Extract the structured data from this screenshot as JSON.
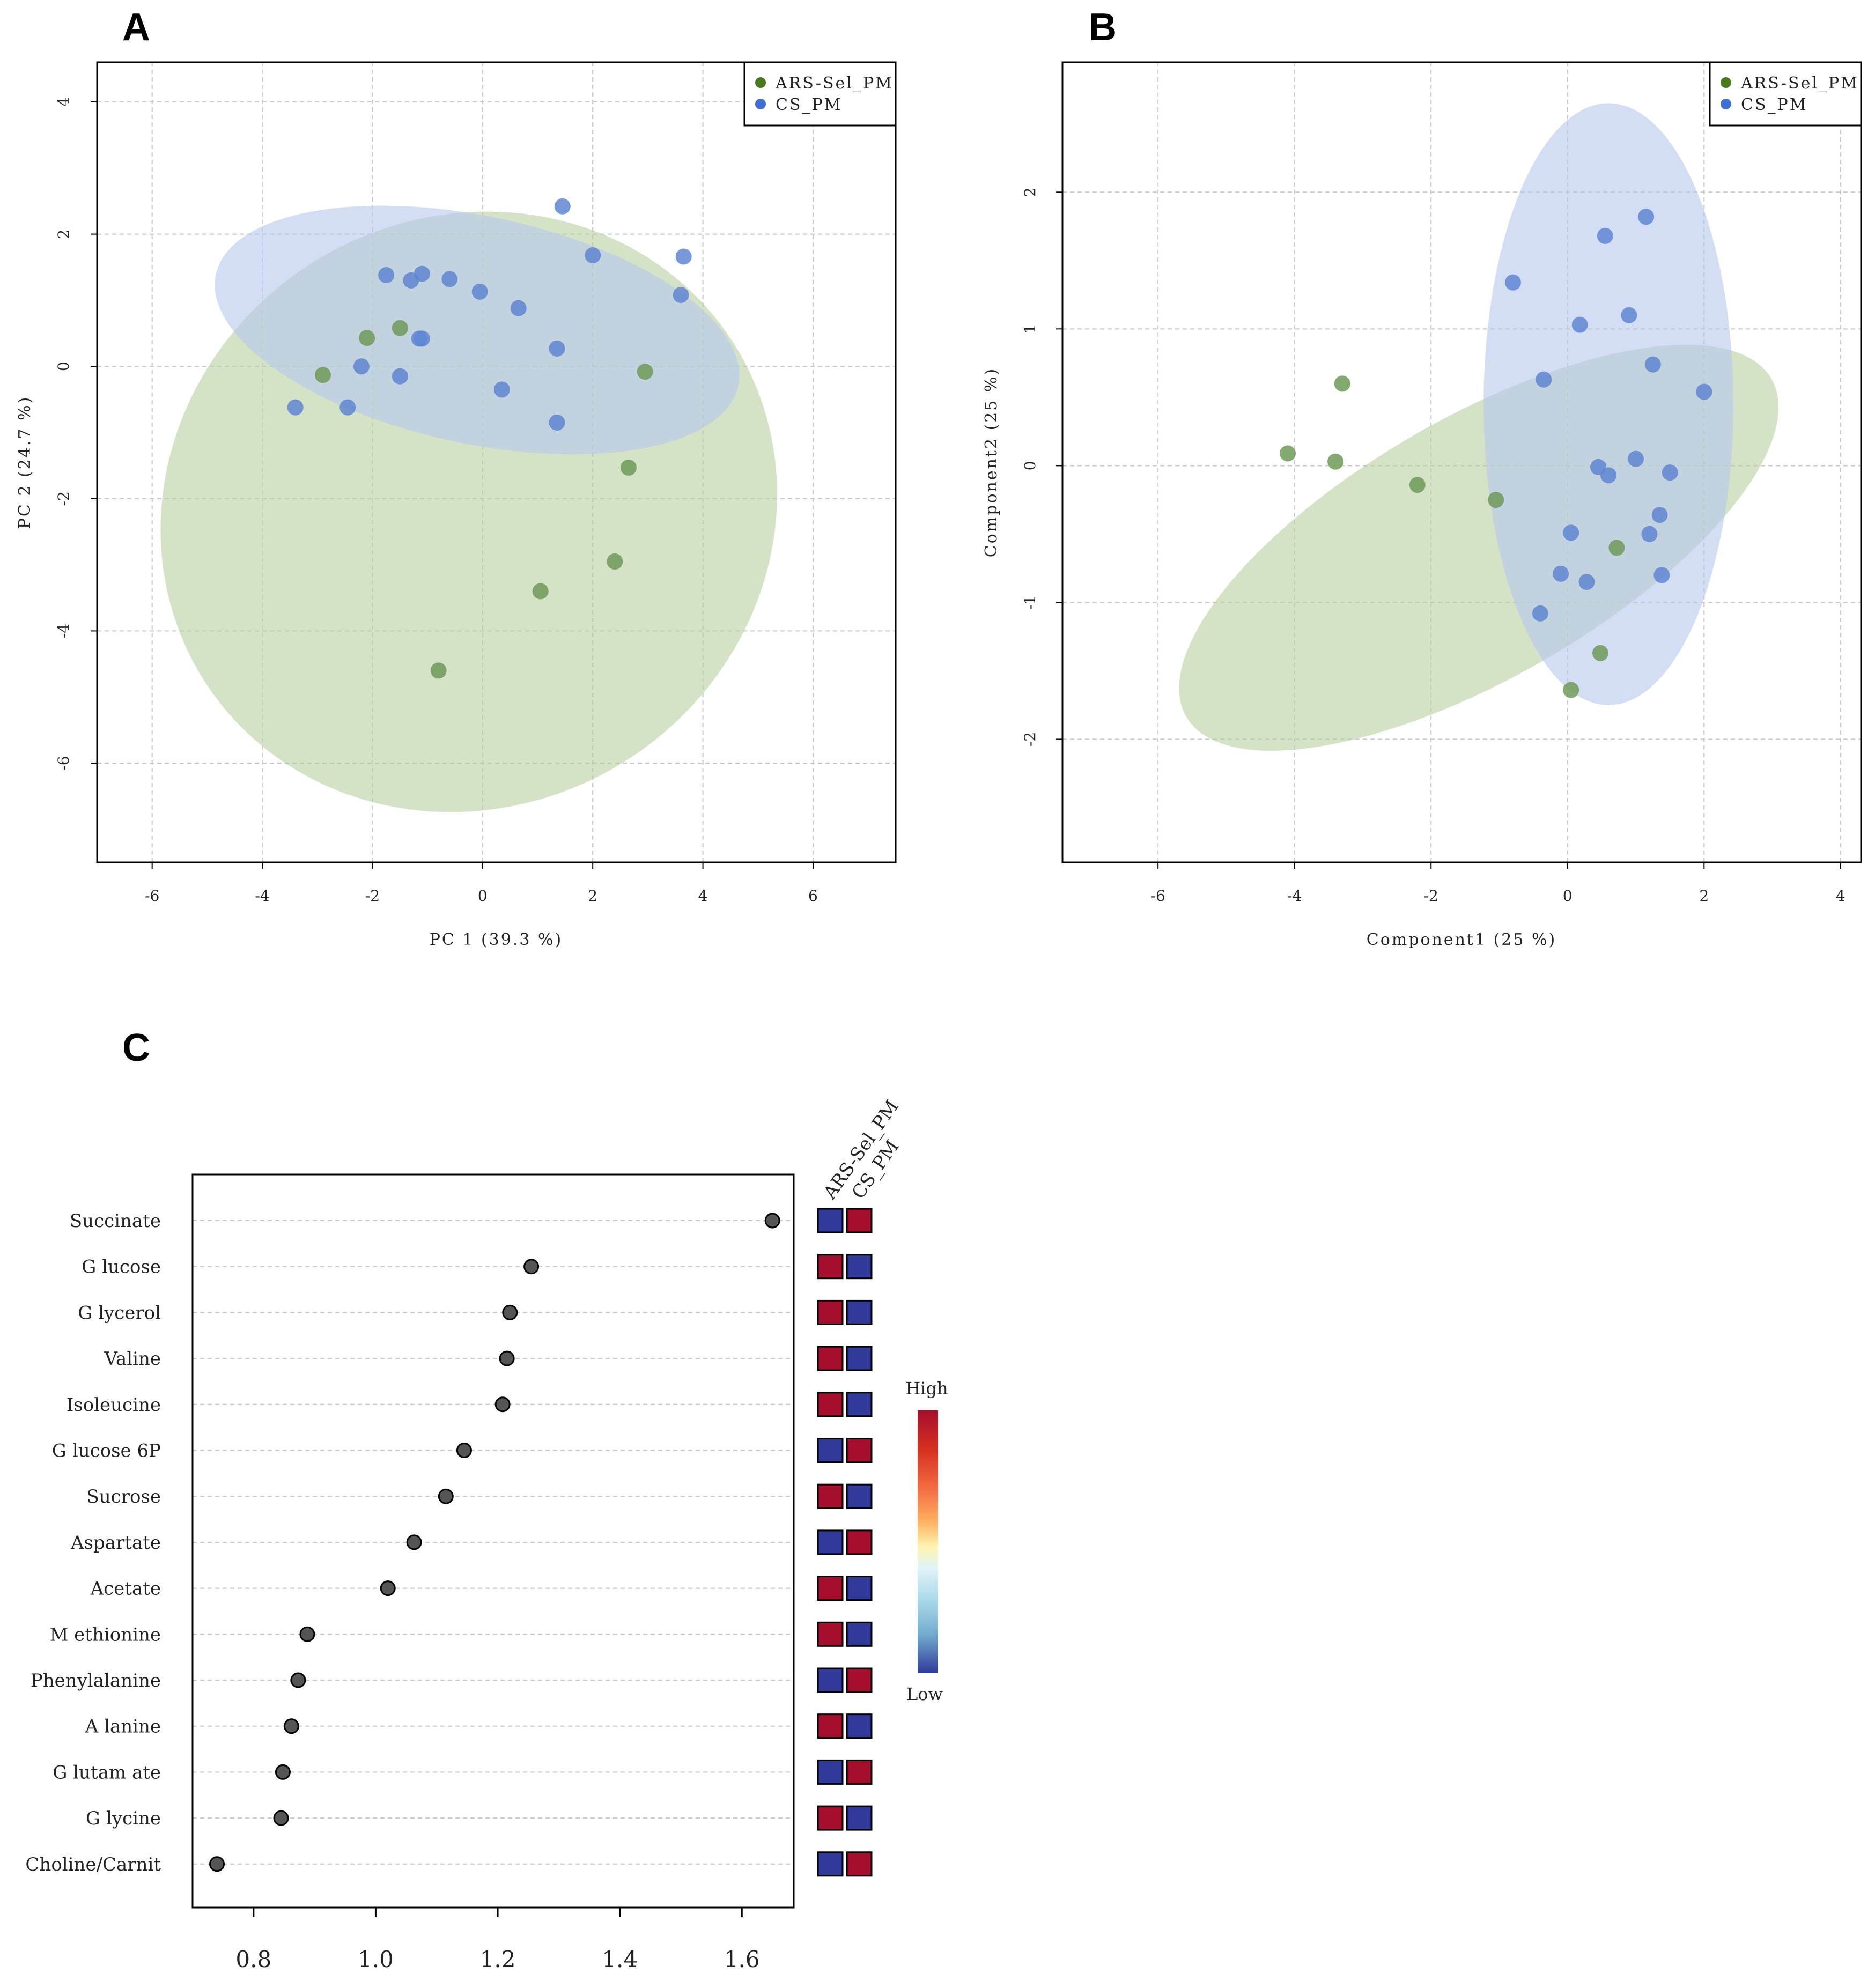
{
  "figure": {
    "panel_labels": [
      "A",
      "B",
      "C"
    ]
  },
  "colors": {
    "ars_point": "#6e9a58",
    "cs_point": "#5f86d2",
    "ars_ellipse": "#b8cf9f",
    "cs_ellipse": "#b5c8ef",
    "legend_ars": "#4a7a1e",
    "legend_cs": "#3f6fd0",
    "high": "#a50f2d",
    "low": "#2f3a99",
    "dot": "#555555"
  },
  "chart_data": [
    {
      "panel": "A",
      "type": "scatter",
      "title": "",
      "xlabel": "PC 1 (39.3 %)",
      "ylabel": "PC 2 (24.7 %)",
      "xlim": [
        -7,
        7.5
      ],
      "ylim": [
        -7.5,
        4.6
      ],
      "xticks": [
        -6,
        -4,
        -2,
        0,
        2,
        4,
        6
      ],
      "yticks": [
        -6,
        -4,
        -2,
        0,
        2,
        4
      ],
      "legend": {
        "position": "top-right",
        "entries": [
          "ARS-Sel_PM",
          "CS_PM"
        ]
      },
      "grid": true,
      "ellipses": [
        {
          "group": "ARS-Sel_PM",
          "cx": -0.25,
          "cy": -2.2,
          "rx": 5.7,
          "ry": 4.45,
          "angle_deg": -33
        },
        {
          "group": "CS_PM",
          "cx": -0.1,
          "cy": 0.55,
          "rx": 4.85,
          "ry": 1.72,
          "angle_deg": 12
        }
      ],
      "series": [
        {
          "name": "ARS-Sel_PM",
          "points": [
            [
              -2.9,
              -0.13
            ],
            [
              -2.1,
              0.43
            ],
            [
              -1.5,
              0.58
            ],
            [
              2.95,
              -0.08
            ],
            [
              2.65,
              -1.53
            ],
            [
              2.4,
              -2.95
            ],
            [
              1.05,
              -3.4
            ],
            [
              -0.8,
              -4.6
            ]
          ]
        },
        {
          "name": "CS_PM",
          "points": [
            [
              -1.75,
              1.38
            ],
            [
              -1.3,
              1.3
            ],
            [
              -1.1,
              1.4
            ],
            [
              -0.6,
              1.32
            ],
            [
              -0.05,
              1.13
            ],
            [
              0.65,
              0.88
            ],
            [
              1.45,
              2.42
            ],
            [
              2.0,
              1.68
            ],
            [
              3.65,
              1.66
            ],
            [
              3.6,
              1.08
            ],
            [
              1.35,
              0.27
            ],
            [
              -1.1,
              0.42
            ],
            [
              -1.15,
              0.42
            ],
            [
              -2.2,
              0.0
            ],
            [
              -1.5,
              -0.15
            ],
            [
              -3.4,
              -0.62
            ],
            [
              -2.45,
              -0.62
            ],
            [
              0.35,
              -0.35
            ],
            [
              1.35,
              -0.85
            ]
          ]
        }
      ]
    },
    {
      "panel": "B",
      "type": "scatter",
      "title": "",
      "xlabel": "Component1 (25 %)",
      "ylabel": "Component2 (25 %)",
      "xlim": [
        -7.4,
        4.3
      ],
      "ylim": [
        -2.9,
        2.95
      ],
      "xticks": [
        -6,
        -4,
        -2,
        0,
        2,
        4
      ],
      "yticks": [
        -2,
        -1,
        0,
        1,
        2
      ],
      "legend": {
        "position": "top-right",
        "entries": [
          "ARS-Sel_PM",
          "CS_PM"
        ]
      },
      "grid": true,
      "ellipses": [
        {
          "group": "ARS-Sel_PM",
          "cx": -1.3,
          "cy": -0.6,
          "rx": 4.95,
          "ry": 0.95,
          "angle_deg": -30
        },
        {
          "group": "CS_PM",
          "cx": 0.6,
          "cy": 0.45,
          "rx": 1.83,
          "ry": 2.2,
          "angle_deg": 0
        }
      ],
      "series": [
        {
          "name": "ARS-Sel_PM",
          "points": [
            [
              -3.3,
              0.6
            ],
            [
              -4.1,
              0.09
            ],
            [
              -3.4,
              0.03
            ],
            [
              -2.2,
              -0.14
            ],
            [
              -1.05,
              -0.25
            ],
            [
              0.72,
              -0.6
            ],
            [
              0.48,
              -1.37
            ],
            [
              0.05,
              -1.64
            ]
          ]
        },
        {
          "name": "CS_PM",
          "points": [
            [
              1.15,
              1.82
            ],
            [
              0.55,
              1.68
            ],
            [
              -0.8,
              1.34
            ],
            [
              0.9,
              1.1
            ],
            [
              0.18,
              1.03
            ],
            [
              1.25,
              0.74
            ],
            [
              -0.35,
              0.63
            ],
            [
              2.0,
              0.54
            ],
            [
              1.0,
              0.05
            ],
            [
              0.45,
              -0.01
            ],
            [
              0.6,
              -0.07
            ],
            [
              1.5,
              -0.05
            ],
            [
              1.35,
              -0.36
            ],
            [
              0.05,
              -0.49
            ],
            [
              1.2,
              -0.5
            ],
            [
              -0.1,
              -0.79
            ],
            [
              0.28,
              -0.85
            ],
            [
              1.38,
              -0.8
            ],
            [
              -0.4,
              -1.08
            ]
          ]
        }
      ]
    },
    {
      "panel": "C",
      "type": "dot",
      "title": "",
      "xlabel": "",
      "ylabel": "",
      "xlim": [
        0.7,
        1.685
      ],
      "xticks": [
        0.8,
        1.0,
        1.2,
        1.4,
        1.6
      ],
      "xtick_labels": [
        "0.8",
        "1.0",
        "1.2",
        "1.4",
        "1.6"
      ],
      "categories": [
        "Succinate",
        "Glucose",
        "Glycerol",
        "Valine",
        "Isoleucine",
        "Glucose 6P",
        "Sucrose",
        "Aspartate",
        "Acetate",
        "Methionine",
        "Phenylalanine",
        "Alanine",
        "Glutamate",
        "Glycine",
        "Choline/Carnit"
      ],
      "category_display": [
        "Succinate",
        "G lucose",
        "G lycerol",
        "Valine",
        "Isoleucine",
        "G lucose 6P",
        "Sucrose",
        "Aspartate",
        "Acetate",
        "M ethionine",
        "Phenylalanine",
        "A lanine",
        "G lutam ate",
        "G lycine",
        "Choline/Carnit"
      ],
      "values": [
        1.65,
        1.255,
        1.22,
        1.215,
        1.208,
        1.145,
        1.115,
        1.063,
        1.02,
        0.888,
        0.873,
        0.862,
        0.848,
        0.845,
        0.74
      ],
      "heatmap": {
        "columns": [
          "ARS-Sel_PM",
          "CS_PM"
        ],
        "rows": [
          [
            "low",
            "high"
          ],
          [
            "high",
            "low"
          ],
          [
            "high",
            "low"
          ],
          [
            "high",
            "low"
          ],
          [
            "high",
            "low"
          ],
          [
            "low",
            "high"
          ],
          [
            "high",
            "low"
          ],
          [
            "low",
            "high"
          ],
          [
            "high",
            "low"
          ],
          [
            "high",
            "low"
          ],
          [
            "low",
            "high"
          ],
          [
            "high",
            "low"
          ],
          [
            "low",
            "high"
          ],
          [
            "high",
            "low"
          ],
          [
            "low",
            "high"
          ]
        ]
      },
      "color_scale": {
        "high_label": "High",
        "low_label": "Low"
      }
    }
  ]
}
